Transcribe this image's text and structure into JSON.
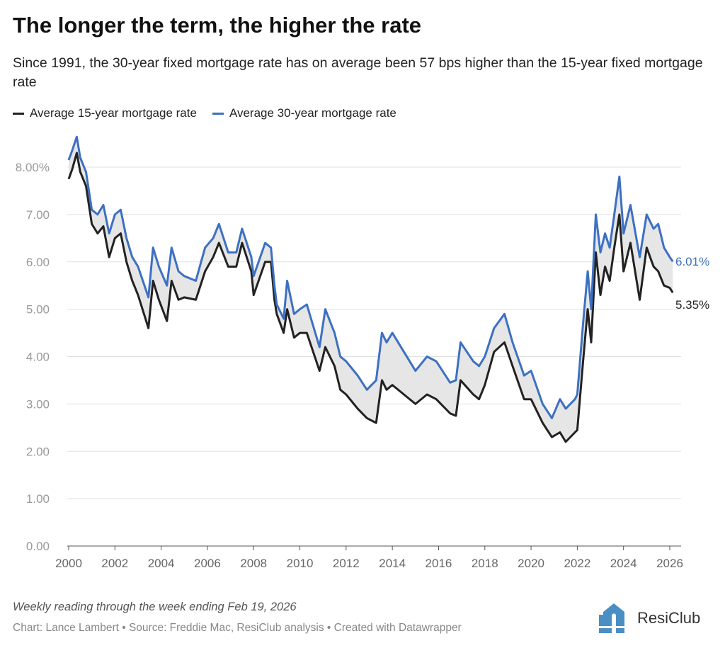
{
  "title": "The longer the term, the higher the rate",
  "subtitle": "Since 1991, the 30-year fixed mortgage rate has on average been 57 bps higher than the 15-year fixed mortgage rate",
  "notes": "Weekly reading through the week ending Feb 19, 2026",
  "source": "Chart: Lance Lambert • Source: Freddie Mac, ResiClub analysis • Created with Datawrapper",
  "logo": {
    "text": "ResiClub",
    "mark": "RC",
    "color": "#4a8fc4"
  },
  "colors": {
    "s15": "#222222",
    "s30": "#3d70c2",
    "fill": "#e6e6e6",
    "grid": "#e0e0e0",
    "tick": "#999999"
  },
  "chart_data": {
    "type": "line",
    "title": "The longer the term, the higher the rate",
    "xlabel": "",
    "ylabel": "",
    "xlim": [
      2000,
      2026.3
    ],
    "ylim": [
      0,
      8
    ],
    "grid": true,
    "legend_position": "top-left",
    "xticks": [
      "2000",
      "2002",
      "2004",
      "2006",
      "2008",
      "2010",
      "2012",
      "2014",
      "2016",
      "2018",
      "2020",
      "2022",
      "2024",
      "2026"
    ],
    "yticks": [
      {
        "v": 0,
        "label": "0.00"
      },
      {
        "v": 1,
        "label": "1.00"
      },
      {
        "v": 2,
        "label": "2.00"
      },
      {
        "v": 3,
        "label": "3.00"
      },
      {
        "v": 4,
        "label": "4.00"
      },
      {
        "v": 5,
        "label": "5.00"
      },
      {
        "v": 6,
        "label": "6.00"
      },
      {
        "v": 7,
        "label": "7.00"
      },
      {
        "v": 8,
        "label": "8.00%"
      }
    ],
    "x": [
      2000.0,
      2000.15,
      2000.35,
      2000.5,
      2000.75,
      2001.0,
      2001.25,
      2001.5,
      2001.75,
      2002.0,
      2002.25,
      2002.5,
      2002.75,
      2003.0,
      2003.45,
      2003.65,
      2003.9,
      2004.25,
      2004.45,
      2004.75,
      2005.0,
      2005.5,
      2005.9,
      2006.25,
      2006.5,
      2006.9,
      2007.25,
      2007.5,
      2007.9,
      2008.0,
      2008.5,
      2008.75,
      2008.9,
      2009.0,
      2009.3,
      2009.45,
      2009.75,
      2010.0,
      2010.3,
      2010.85,
      2011.1,
      2011.5,
      2011.75,
      2012.0,
      2012.5,
      2012.9,
      2013.3,
      2013.55,
      2013.75,
      2014.0,
      2014.5,
      2015.0,
      2015.5,
      2015.9,
      2016.5,
      2016.75,
      2016.95,
      2017.5,
      2017.75,
      2018.0,
      2018.4,
      2018.85,
      2019.2,
      2019.7,
      2020.0,
      2020.5,
      2020.9,
      2021.25,
      2021.5,
      2021.9,
      2022.0,
      2022.25,
      2022.45,
      2022.6,
      2022.8,
      2023.0,
      2023.2,
      2023.4,
      2023.6,
      2023.82,
      2024.0,
      2024.3,
      2024.7,
      2025.0,
      2025.3,
      2025.5,
      2025.75,
      2026.0,
      2026.13
    ],
    "series": [
      {
        "name": "Average 15-year mortgage rate",
        "end_label": "5.35%",
        "values": [
          7.75,
          7.95,
          8.3,
          7.9,
          7.6,
          6.8,
          6.6,
          6.75,
          6.1,
          6.5,
          6.6,
          6.0,
          5.6,
          5.3,
          4.6,
          5.6,
          5.2,
          4.75,
          5.6,
          5.2,
          5.25,
          5.2,
          5.8,
          6.1,
          6.4,
          5.9,
          5.9,
          6.4,
          5.8,
          5.3,
          6.0,
          6.0,
          5.2,
          4.9,
          4.5,
          5.0,
          4.4,
          4.5,
          4.5,
          3.7,
          4.2,
          3.8,
          3.3,
          3.2,
          2.9,
          2.7,
          2.6,
          3.5,
          3.3,
          3.4,
          3.2,
          3.0,
          3.2,
          3.1,
          2.8,
          2.75,
          3.5,
          3.2,
          3.1,
          3.4,
          4.1,
          4.3,
          3.8,
          3.1,
          3.1,
          2.6,
          2.3,
          2.4,
          2.2,
          2.4,
          2.45,
          3.9,
          5.0,
          4.3,
          6.2,
          5.3,
          5.9,
          5.6,
          6.3,
          7.0,
          5.8,
          6.4,
          5.2,
          6.3,
          5.9,
          5.8,
          5.5,
          5.45,
          5.35
        ]
      },
      {
        "name": "Average 30-year mortgage rate",
        "end_label": "6.01%",
        "values": [
          8.15,
          8.35,
          8.64,
          8.2,
          7.9,
          7.1,
          7.0,
          7.2,
          6.6,
          7.0,
          7.1,
          6.5,
          6.1,
          5.9,
          5.25,
          6.3,
          5.9,
          5.5,
          6.3,
          5.8,
          5.7,
          5.6,
          6.3,
          6.5,
          6.8,
          6.2,
          6.2,
          6.7,
          6.1,
          5.7,
          6.4,
          6.3,
          5.5,
          5.1,
          4.8,
          5.6,
          4.9,
          5.0,
          5.1,
          4.2,
          5.0,
          4.5,
          4.0,
          3.9,
          3.6,
          3.3,
          3.5,
          4.5,
          4.3,
          4.5,
          4.1,
          3.7,
          4.0,
          3.9,
          3.45,
          3.5,
          4.3,
          3.9,
          3.8,
          4.0,
          4.6,
          4.9,
          4.3,
          3.6,
          3.7,
          3.0,
          2.7,
          3.1,
          2.9,
          3.1,
          3.2,
          4.7,
          5.8,
          5.0,
          7.0,
          6.2,
          6.6,
          6.3,
          7.0,
          7.8,
          6.6,
          7.2,
          6.1,
          7.0,
          6.7,
          6.8,
          6.3,
          6.1,
          6.01
        ]
      }
    ]
  }
}
